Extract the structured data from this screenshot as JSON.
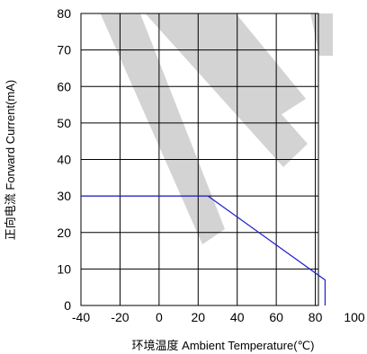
{
  "chart_data": {
    "type": "line",
    "title": "",
    "xlabel": "环境温度  Ambient Temperature(℃)",
    "ylabel": "正向电流 Forward Current(mA)",
    "xlim": [
      -40,
      100
    ],
    "ylim": [
      0,
      80
    ],
    "x_ticks": [
      "-40",
      "-20",
      "0",
      "20",
      "40",
      "60",
      "80",
      "100"
    ],
    "y_ticks": [
      "0",
      "10",
      "20",
      "30",
      "40",
      "50",
      "60",
      "70",
      "80"
    ],
    "grid": true,
    "legend": "none",
    "series": [
      {
        "color": "#1f1fd0",
        "x": [
          -40,
          25,
          85,
          85
        ],
        "y": [
          30,
          30,
          7,
          0
        ]
      }
    ]
  }
}
